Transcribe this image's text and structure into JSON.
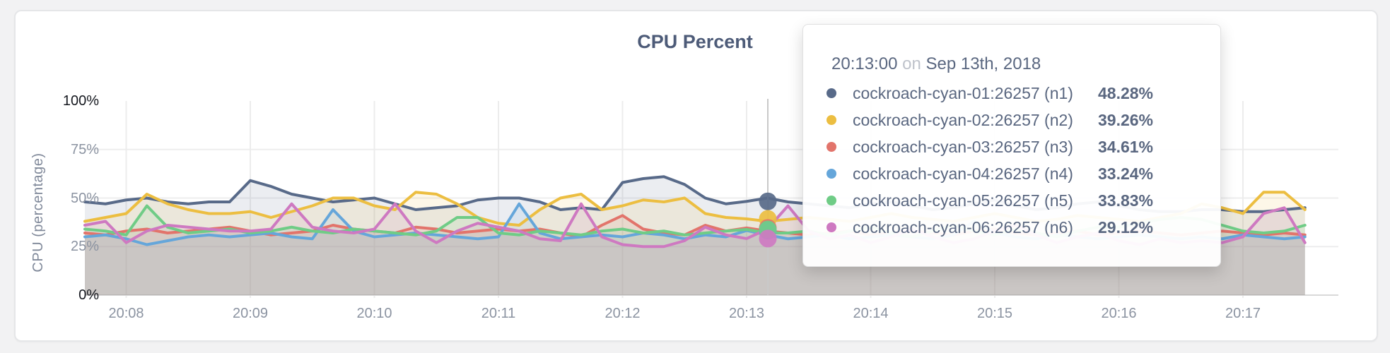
{
  "card": {
    "title": "CPU Percent"
  },
  "tooltip": {
    "time": "20:13:00",
    "on_word": "on",
    "date": "Sep 13th, 2018",
    "rows": [
      {
        "name": "cockroach-cyan-01:26257 (n1)",
        "value": "48.28%",
        "color": "#586a89"
      },
      {
        "name": "cockroach-cyan-02:26257 (n2)",
        "value": "39.26%",
        "color": "#ecbe41"
      },
      {
        "name": "cockroach-cyan-03:26257 (n3)",
        "value": "34.61%",
        "color": "#e2746b"
      },
      {
        "name": "cockroach-cyan-04:26257 (n4)",
        "value": "33.24%",
        "color": "#65a6da"
      },
      {
        "name": "cockroach-cyan-05:26257 (n5)",
        "value": "33.83%",
        "color": "#6fcc86"
      },
      {
        "name": "cockroach-cyan-06:26257 (n6)",
        "value": "29.12%",
        "color": "#ce79c1"
      }
    ]
  },
  "chart_data": {
    "type": "line",
    "title": "CPU Percent",
    "xlabel": "",
    "ylabel": "CPU (percentage)",
    "ylim": [
      0,
      100
    ],
    "grid": true,
    "time_domain": {
      "start": "20:07:40",
      "end": "20:17:30",
      "step_seconds": 10,
      "date": "Sep 13th, 2018"
    },
    "x_ticks": [
      "20:08",
      "20:09",
      "20:10",
      "20:11",
      "20:12",
      "20:13",
      "20:14",
      "20:15",
      "20:16",
      "20:17"
    ],
    "y_ticks": [
      {
        "label": "100%",
        "value": 100,
        "strong": true
      },
      {
        "label": "75%",
        "value": 75,
        "strong": false
      },
      {
        "label": "50%",
        "value": 50,
        "strong": false
      },
      {
        "label": "25%",
        "value": 25,
        "strong": false
      },
      {
        "label": "0%",
        "value": 0,
        "strong": true
      }
    ],
    "hover": {
      "time": "20:13:00",
      "values": [
        48.28,
        39.26,
        34.61,
        33.24,
        33.83,
        29.12
      ]
    },
    "series": [
      {
        "name": "cockroach-cyan-01:26257 (n1)",
        "color": "#586a89",
        "values": [
          48,
          47,
          49,
          50,
          48,
          47,
          48,
          48,
          59,
          56,
          52,
          50,
          48,
          49,
          50,
          47,
          44,
          45,
          46,
          49,
          50,
          50,
          48,
          44,
          45,
          44,
          58,
          60,
          61,
          57,
          50,
          47,
          48.28,
          50,
          48,
          47,
          46,
          45,
          47,
          48,
          46,
          44,
          45,
          47,
          49,
          46,
          44,
          45,
          47,
          48,
          46,
          44,
          43,
          43,
          44,
          44,
          43,
          43,
          44,
          45
        ]
      },
      {
        "name": "cockroach-cyan-02:26257 (n2)",
        "color": "#ecbe41",
        "values": [
          38,
          40,
          42,
          52,
          47,
          44,
          42,
          42,
          43,
          40,
          43,
          46,
          50,
          50,
          46,
          44,
          53,
          52,
          47,
          40,
          37,
          36,
          44,
          50,
          52,
          44,
          46,
          49,
          48,
          50,
          42,
          40,
          39.26,
          38,
          39,
          40,
          39,
          38,
          40,
          42,
          40,
          39,
          38,
          40,
          42,
          40,
          38,
          39,
          41,
          40,
          39,
          38,
          40,
          42,
          47,
          45,
          42,
          53,
          53,
          44
        ]
      },
      {
        "name": "cockroach-cyan-03:26257 (n3)",
        "color": "#e2746b",
        "values": [
          32,
          31,
          33,
          34,
          32,
          33,
          34,
          35,
          33,
          31,
          32,
          33,
          36,
          34,
          33,
          32,
          35,
          34,
          32,
          33,
          34,
          33,
          34,
          32,
          30,
          36,
          41,
          34,
          32,
          31,
          36,
          33,
          34.61,
          33,
          32,
          31,
          32,
          33,
          31,
          32,
          33,
          32,
          31,
          33,
          34,
          32,
          31,
          32,
          33,
          31,
          32,
          33,
          32,
          31,
          32,
          33,
          32,
          31,
          32,
          31
        ]
      },
      {
        "name": "cockroach-cyan-04:26257 (n4)",
        "color": "#65a6da",
        "values": [
          30,
          31,
          29,
          26,
          28,
          30,
          31,
          30,
          31,
          32,
          30,
          29,
          44,
          33,
          30,
          31,
          32,
          31,
          30,
          29,
          30,
          47,
          32,
          29,
          30,
          31,
          30,
          32,
          31,
          29,
          31,
          30,
          33.24,
          31,
          29,
          30,
          31,
          29,
          30,
          31,
          30,
          29,
          31,
          38,
          32,
          30,
          29,
          31,
          30,
          29,
          30,
          31,
          30,
          29,
          30,
          29,
          31,
          30,
          29,
          30
        ]
      },
      {
        "name": "cockroach-cyan-05:26257 (n5)",
        "color": "#6fcc86",
        "values": [
          34,
          33,
          31,
          46,
          35,
          32,
          33,
          34,
          32,
          33,
          35,
          33,
          32,
          34,
          33,
          32,
          31,
          33,
          40,
          40,
          32,
          31,
          33,
          32,
          31,
          33,
          34,
          32,
          33,
          31,
          32,
          33,
          33.83,
          32,
          32,
          33,
          31,
          33,
          35,
          32,
          30,
          33,
          36,
          33,
          31,
          34,
          32,
          30,
          33,
          35,
          35,
          37,
          39,
          40,
          39,
          36,
          33,
          32,
          33,
          36
        ]
      },
      {
        "name": "cockroach-cyan-06:26257 (n6)",
        "color": "#ce79c1",
        "values": [
          36,
          38,
          27,
          33,
          36,
          35,
          34,
          33,
          33,
          34,
          47,
          35,
          33,
          32,
          34,
          47,
          33,
          27,
          33,
          37,
          35,
          33,
          29,
          28,
          47,
          30,
          26,
          25,
          25,
          28,
          35,
          31,
          29.12,
          34,
          46,
          33,
          29,
          31,
          27,
          30,
          34,
          30,
          27,
          29,
          33,
          36,
          31,
          27,
          30,
          32,
          28,
          26,
          29,
          27,
          28,
          27,
          30,
          42,
          45,
          27
        ]
      }
    ]
  }
}
